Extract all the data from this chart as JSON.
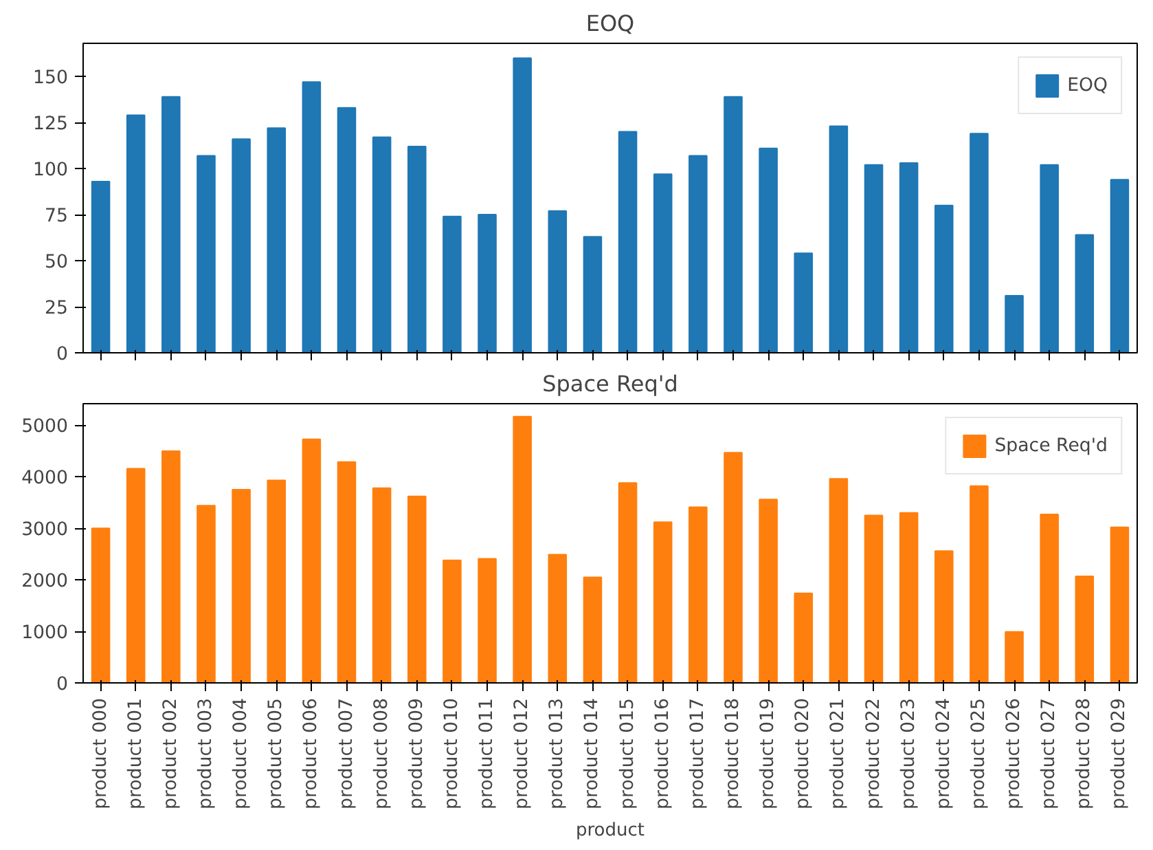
{
  "chart_data": [
    {
      "type": "bar",
      "title": "EOQ",
      "categories": [
        null,
        null,
        null,
        null,
        null,
        null,
        null,
        null,
        null,
        null,
        null,
        null,
        null,
        null,
        null,
        null,
        null,
        null,
        null,
        null,
        null,
        null,
        null,
        null,
        null,
        null,
        null,
        null,
        null,
        null
      ],
      "series": [
        {
          "name": "EOQ",
          "color": "#1f77b4",
          "values": [
            93,
            129,
            139,
            107,
            116,
            122,
            147,
            133,
            117,
            112,
            74,
            75,
            160,
            77,
            63,
            120,
            97,
            107,
            139,
            111,
            54,
            123,
            102,
            103,
            80,
            119,
            31,
            102,
            64,
            94
          ]
        }
      ],
      "ylim": [
        0,
        168
      ],
      "yticks": [
        0,
        25,
        50,
        75,
        100,
        125,
        150
      ],
      "grid": false,
      "legend": "top right",
      "tick_labels": "y"
    },
    {
      "type": "bar",
      "title": "Space Req'd",
      "xlabel": "product",
      "categories": [
        "product 000",
        "product 001",
        "product 002",
        "product 003",
        "product 004",
        "product 005",
        "product 006",
        "product 007",
        "product 008",
        "product 009",
        "product 010",
        "product 011",
        "product 012",
        "product 013",
        "product 014",
        "product 015",
        "product 016",
        "product 017",
        "product 018",
        "product 019",
        "product 020",
        "product 021",
        "product 022",
        "product 023",
        "product 024",
        "product 025",
        "product 026",
        "product 027",
        "product 028",
        "product 029"
      ],
      "series": [
        {
          "name": "Space Req'd",
          "color": "#ff7f0e",
          "values": [
            3000,
            4160,
            4500,
            3440,
            3750,
            3930,
            4730,
            4290,
            3780,
            3620,
            2380,
            2410,
            5170,
            2490,
            2050,
            3880,
            3120,
            3410,
            4470,
            3560,
            1740,
            3960,
            3250,
            3300,
            2560,
            3820,
            990,
            3270,
            2070,
            3020
          ]
        }
      ],
      "ylim": [
        0,
        5420
      ],
      "yticks": [
        0,
        1000,
        2000,
        3000,
        4000,
        5000
      ],
      "grid": false,
      "legend": "top right"
    }
  ]
}
